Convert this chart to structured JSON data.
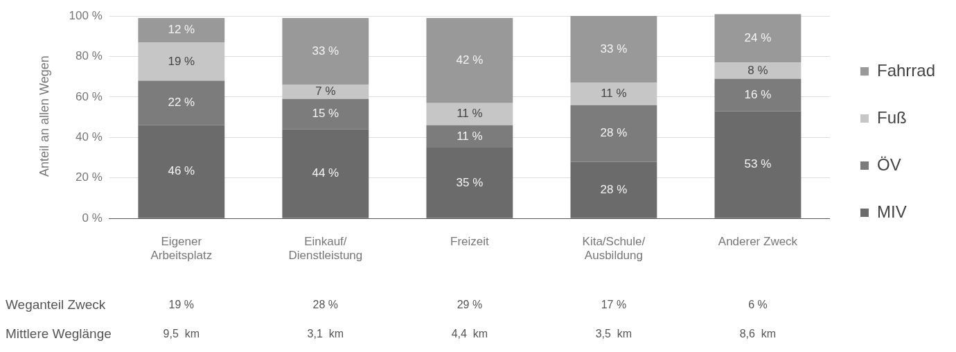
{
  "chart_data": {
    "type": "bar",
    "stacked": true,
    "ylabel": "Anteil an allen Wegen",
    "categories": [
      "Eigener\nArbeitsplatz",
      "Einkauf/\nDienstleistung",
      "Freizeit",
      "Kita/Schule/\nAusbildung",
      "Anderer Zweck"
    ],
    "series": [
      {
        "name": "MIV",
        "color": "#6b6b6b",
        "values": [
          46,
          44,
          35,
          28,
          53
        ],
        "value_labels": [
          "46 %",
          "44 %",
          "35 %",
          "28 %",
          "53 %"
        ]
      },
      {
        "name": "ÖV",
        "color": "#7c7c7c",
        "values": [
          22,
          15,
          11,
          28,
          16
        ],
        "value_labels": [
          "22 %",
          "15 %",
          "11 %",
          "28 %",
          "16 %"
        ]
      },
      {
        "name": "Fuß",
        "color": "#c6c6c6",
        "values": [
          19,
          7,
          11,
          11,
          8
        ],
        "value_labels": [
          "19 %",
          "7 %",
          "11 %",
          "11 %",
          "8 %"
        ]
      },
      {
        "name": "Fahrrad",
        "color": "#999999",
        "values": [
          12,
          33,
          42,
          33,
          24
        ],
        "value_labels": [
          "12 %",
          "33 %",
          "42 %",
          "33 %",
          "24 %"
        ]
      }
    ],
    "ylim": [
      0,
      101
    ],
    "yticks": [
      {
        "value": 0,
        "label": "0 %"
      },
      {
        "value": 20,
        "label": "20 %"
      },
      {
        "value": 40,
        "label": "40 %"
      },
      {
        "value": 60,
        "label": "60 %"
      },
      {
        "value": 80,
        "label": "80 %"
      },
      {
        "value": 100,
        "label": "100 %"
      }
    ],
    "grid": "y",
    "legend": "right",
    "annotations": [
      "Weganteil Zweck",
      "19 %",
      "28 %",
      "29 %",
      "17 %",
      "6 %",
      "Mittlere Weglänge",
      "9,5  km",
      "3,1  km",
      "4,4  km",
      "3,5  km",
      "8,6  km"
    ]
  }
}
